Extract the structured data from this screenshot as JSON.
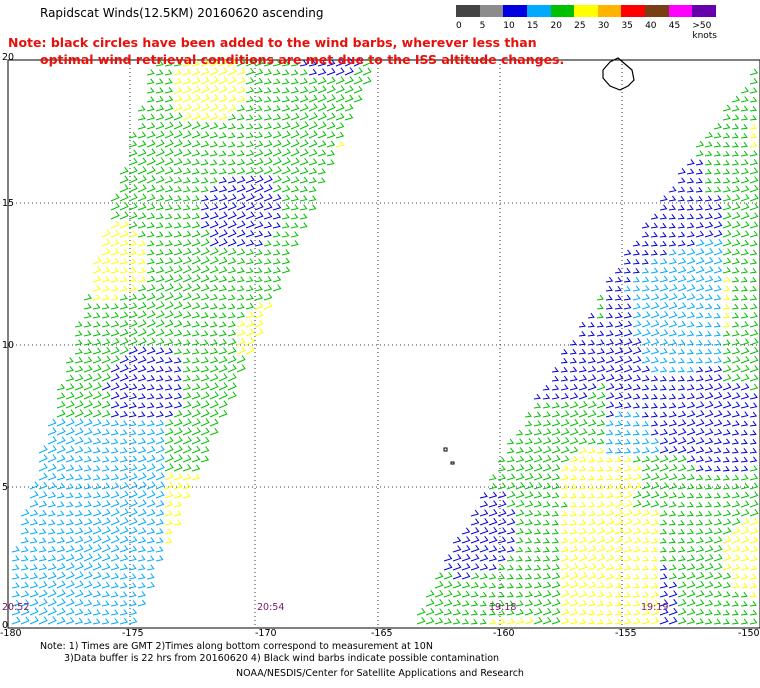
{
  "title": "Rapidscat Winds(12.5KM) 20160620 ascending",
  "color_scale": {
    "colors": [
      "#444444",
      "#8c8c8c",
      "#0000e0",
      "#00aaff",
      "#00c000",
      "#ffff00",
      "#ffb400",
      "#ff0000",
      "#7a3e14",
      "#ff00ff",
      "#6600aa"
    ],
    "labels": [
      "0",
      "5",
      "10",
      "15",
      "20",
      "25",
      "30",
      "35",
      "40",
      "45",
      ">50 knots"
    ]
  },
  "note": {
    "line1": "Note: black circles have been added to the wind barbs, wherever less than",
    "line2": "optimal wind retrieval conditions are met due to the ISS altitude changes."
  },
  "y_axis_labels": [
    "20",
    "15",
    "10",
    "5",
    "0"
  ],
  "x_axis_labels": [
    "-180",
    "-175",
    "-170",
    "-165",
    "-160",
    "-155",
    "-150"
  ],
  "time_labels": [
    "20:52",
    "20:54",
    "19:18",
    "19:19"
  ],
  "footnote": {
    "line1": "Note: 1) Times are GMT 2)Times along bottom correspond to measurement at 10N",
    "line2": "3)Data buffer is 22 hrs from 20160620 4) Black wind barbs indicate possible contamination"
  },
  "credit": "NOAA/NESDIS/Center for Satellite Applications and Research"
}
